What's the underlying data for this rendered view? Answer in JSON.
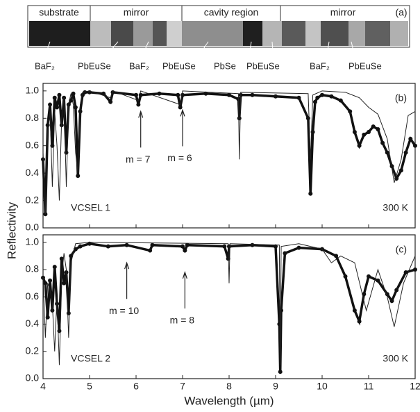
{
  "panel_a": {
    "tag": "(a)",
    "regions": [
      "substrate",
      "mirror",
      "cavity region",
      "mirror"
    ],
    "layers": [
      "BaF₂",
      "PbEuSe",
      "BaF₂",
      "PbEuSe",
      "PbSe",
      "PbEuSe",
      "BaF₂",
      "PbEuSe"
    ]
  },
  "axes": {
    "x_label": "Wavelength (µm)",
    "y_label": "Reflectivity"
  },
  "chart_data": [
    {
      "type": "line",
      "tag": "(b)",
      "sample": "VCSEL 1",
      "temperature": "300 K",
      "xlim": [
        4,
        12
      ],
      "xticks": [
        4,
        5,
        6,
        7,
        8,
        9,
        10,
        11,
        12
      ],
      "ylim": [
        0,
        1.055
      ],
      "yticks": [
        {
          "value": 0,
          "label": "0.0"
        },
        0.2,
        0.4,
        0.6,
        0.8,
        {
          "value": 1,
          "label": "1.0"
        }
      ],
      "annotations": [
        {
          "text": "m = 7",
          "x": 6.1,
          "y": 0.85
        },
        {
          "text": "m = 6",
          "x": 7.0,
          "y": 0.86
        }
      ],
      "series": [
        {
          "style": "markers",
          "color": "#111",
          "x": [
            4.0,
            4.05,
            4.1,
            4.15,
            4.2,
            4.25,
            4.3,
            4.35,
            4.4,
            4.45,
            4.5,
            4.55,
            4.6,
            4.65,
            4.7,
            4.75,
            4.8,
            4.85,
            4.9,
            5.0,
            5.3,
            5.45,
            5.5,
            6.0,
            6.05,
            6.1,
            6.5,
            6.9,
            6.95,
            7.0,
            7.5,
            8.0,
            8.2,
            8.22,
            8.25,
            8.5,
            9.0,
            9.5,
            9.7,
            9.75,
            9.8,
            9.85,
            9.9,
            10.0,
            10.2,
            10.4,
            10.6,
            10.7,
            10.8,
            10.9,
            11.0,
            11.1,
            11.2,
            11.3,
            11.4,
            11.5,
            11.6,
            11.7,
            11.8,
            11.9,
            12.0
          ],
          "values": [
            0.5,
            0.1,
            0.75,
            0.9,
            0.6,
            0.95,
            0.88,
            0.97,
            0.75,
            0.95,
            0.55,
            0.9,
            0.93,
            0.98,
            0.88,
            0.38,
            0.85,
            0.97,
            0.99,
            0.99,
            0.98,
            0.92,
            0.99,
            0.97,
            0.9,
            0.97,
            0.98,
            0.97,
            0.88,
            0.97,
            0.98,
            0.97,
            0.94,
            0.8,
            0.97,
            0.97,
            0.96,
            0.95,
            0.8,
            0.25,
            0.7,
            0.92,
            0.95,
            0.97,
            0.96,
            0.93,
            0.85,
            0.7,
            0.6,
            0.68,
            0.7,
            0.74,
            0.72,
            0.62,
            0.55,
            0.45,
            0.36,
            0.42,
            0.55,
            0.65,
            0.6
          ]
        },
        {
          "style": "line",
          "color": "#222",
          "x": [
            4.0,
            4.05,
            4.1,
            4.15,
            4.2,
            4.25,
            4.3,
            4.35,
            4.4,
            4.45,
            4.5,
            4.55,
            4.6,
            4.65,
            4.7,
            4.75,
            4.8,
            4.85,
            5.0,
            5.45,
            5.5,
            6.05,
            6.1,
            6.95,
            7.0,
            8.2,
            8.22,
            8.25,
            9.7,
            9.75,
            9.8,
            10.0,
            10.5,
            10.8,
            11.0,
            11.2,
            11.4,
            11.55,
            11.7,
            11.85,
            12.0
          ],
          "values": [
            0.55,
            0.1,
            0.7,
            0.85,
            0.3,
            0.85,
            0.6,
            0.2,
            0.8,
            0.95,
            0.3,
            0.9,
            0.98,
            0.9,
            0.55,
            0.4,
            0.9,
            0.99,
            1.0,
            0.95,
            1.0,
            0.93,
            1.0,
            0.9,
            1.0,
            0.98,
            0.5,
            0.99,
            0.98,
            0.5,
            0.97,
            1.0,
            0.99,
            0.95,
            0.88,
            0.83,
            0.65,
            0.33,
            0.5,
            0.82,
            0.85
          ]
        }
      ]
    },
    {
      "type": "line",
      "tag": "(c)",
      "sample": "VCSEL 2",
      "temperature": "300 K",
      "xlim": [
        4,
        12
      ],
      "xticks": [
        4,
        5,
        6,
        7,
        8,
        9,
        10,
        11,
        12
      ],
      "ylim": [
        0,
        1.055
      ],
      "yticks": [
        {
          "value": 0,
          "label": "0.0"
        },
        0.2,
        0.4,
        0.6,
        0.8,
        {
          "value": 1,
          "label": "1.0"
        }
      ],
      "annotations": [
        {
          "text": "m = 10",
          "x": 5.8,
          "y": 0.85
        },
        {
          "text": "m = 8",
          "x": 7.05,
          "y": 0.78
        }
      ],
      "series": [
        {
          "style": "markers",
          "color": "#111",
          "x": [
            4.0,
            4.05,
            4.1,
            4.15,
            4.2,
            4.25,
            4.3,
            4.35,
            4.4,
            4.45,
            4.5,
            4.55,
            4.6,
            4.7,
            4.8,
            5.0,
            5.4,
            5.8,
            6.3,
            6.35,
            7.0,
            7.05,
            7.1,
            7.9,
            7.98,
            8.0,
            8.5,
            9.0,
            9.08,
            9.1,
            9.12,
            9.2,
            9.5,
            10.0,
            10.3,
            10.5,
            10.7,
            10.8,
            10.9,
            11.0,
            11.2,
            11.4,
            11.5,
            11.6,
            11.8,
            12.0
          ],
          "values": [
            0.74,
            0.7,
            0.45,
            0.72,
            0.5,
            0.82,
            0.55,
            0.35,
            0.88,
            0.7,
            0.78,
            0.48,
            0.9,
            0.95,
            0.97,
            0.99,
            0.97,
            0.98,
            0.94,
            0.98,
            0.97,
            0.94,
            0.98,
            0.97,
            0.88,
            0.97,
            0.98,
            0.97,
            0.4,
            0.05,
            0.5,
            0.92,
            0.96,
            0.95,
            0.9,
            0.75,
            0.5,
            0.42,
            0.62,
            0.75,
            0.72,
            0.62,
            0.57,
            0.65,
            0.78,
            0.8
          ]
        },
        {
          "style": "line",
          "color": "#222",
          "x": [
            4.0,
            4.05,
            4.1,
            4.15,
            4.2,
            4.25,
            4.3,
            4.35,
            4.4,
            4.45,
            4.5,
            4.55,
            4.6,
            4.7,
            5.0,
            7.98,
            8.0,
            8.02,
            9.08,
            9.1,
            9.12,
            9.5,
            10.0,
            10.2,
            10.4,
            10.7,
            10.95,
            11.2,
            11.4,
            11.55,
            11.75,
            12.0
          ],
          "values": [
            0.75,
            0.3,
            0.7,
            0.65,
            0.55,
            0.2,
            0.6,
            0.1,
            0.75,
            0.92,
            0.8,
            0.3,
            0.85,
            0.99,
            1.0,
            0.99,
            0.7,
            0.99,
            0.98,
            0.1,
            0.97,
            0.99,
            0.95,
            0.85,
            0.9,
            0.85,
            0.5,
            0.8,
            0.6,
            0.38,
            0.7,
            0.9
          ]
        }
      ]
    }
  ]
}
